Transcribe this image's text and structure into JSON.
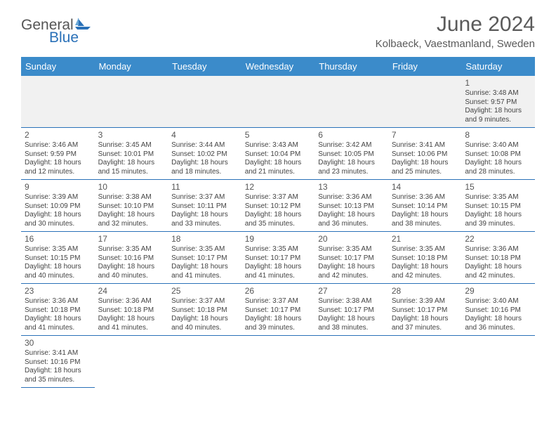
{
  "logo": {
    "part1": "General",
    "part2": "Blue"
  },
  "title": "June 2024",
  "location": "Kolbaeck, Vaestmanland, Sweden",
  "headers": [
    "Sunday",
    "Monday",
    "Tuesday",
    "Wednesday",
    "Thursday",
    "Friday",
    "Saturday"
  ],
  "colors": {
    "header_bg": "#3b8bca",
    "header_text": "#ffffff",
    "border": "#2a71b8",
    "text": "#444444"
  },
  "weeks": [
    [
      null,
      null,
      null,
      null,
      null,
      null,
      {
        "n": "1",
        "sr": "3:48 AM",
        "ss": "9:57 PM",
        "dl": "18 hours and 9 minutes."
      }
    ],
    [
      {
        "n": "2",
        "sr": "3:46 AM",
        "ss": "9:59 PM",
        "dl": "18 hours and 12 minutes."
      },
      {
        "n": "3",
        "sr": "3:45 AM",
        "ss": "10:01 PM",
        "dl": "18 hours and 15 minutes."
      },
      {
        "n": "4",
        "sr": "3:44 AM",
        "ss": "10:02 PM",
        "dl": "18 hours and 18 minutes."
      },
      {
        "n": "5",
        "sr": "3:43 AM",
        "ss": "10:04 PM",
        "dl": "18 hours and 21 minutes."
      },
      {
        "n": "6",
        "sr": "3:42 AM",
        "ss": "10:05 PM",
        "dl": "18 hours and 23 minutes."
      },
      {
        "n": "7",
        "sr": "3:41 AM",
        "ss": "10:06 PM",
        "dl": "18 hours and 25 minutes."
      },
      {
        "n": "8",
        "sr": "3:40 AM",
        "ss": "10:08 PM",
        "dl": "18 hours and 28 minutes."
      }
    ],
    [
      {
        "n": "9",
        "sr": "3:39 AM",
        "ss": "10:09 PM",
        "dl": "18 hours and 30 minutes."
      },
      {
        "n": "10",
        "sr": "3:38 AM",
        "ss": "10:10 PM",
        "dl": "18 hours and 32 minutes."
      },
      {
        "n": "11",
        "sr": "3:37 AM",
        "ss": "10:11 PM",
        "dl": "18 hours and 33 minutes."
      },
      {
        "n": "12",
        "sr": "3:37 AM",
        "ss": "10:12 PM",
        "dl": "18 hours and 35 minutes."
      },
      {
        "n": "13",
        "sr": "3:36 AM",
        "ss": "10:13 PM",
        "dl": "18 hours and 36 minutes."
      },
      {
        "n": "14",
        "sr": "3:36 AM",
        "ss": "10:14 PM",
        "dl": "18 hours and 38 minutes."
      },
      {
        "n": "15",
        "sr": "3:35 AM",
        "ss": "10:15 PM",
        "dl": "18 hours and 39 minutes."
      }
    ],
    [
      {
        "n": "16",
        "sr": "3:35 AM",
        "ss": "10:15 PM",
        "dl": "18 hours and 40 minutes."
      },
      {
        "n": "17",
        "sr": "3:35 AM",
        "ss": "10:16 PM",
        "dl": "18 hours and 40 minutes."
      },
      {
        "n": "18",
        "sr": "3:35 AM",
        "ss": "10:17 PM",
        "dl": "18 hours and 41 minutes."
      },
      {
        "n": "19",
        "sr": "3:35 AM",
        "ss": "10:17 PM",
        "dl": "18 hours and 41 minutes."
      },
      {
        "n": "20",
        "sr": "3:35 AM",
        "ss": "10:17 PM",
        "dl": "18 hours and 42 minutes."
      },
      {
        "n": "21",
        "sr": "3:35 AM",
        "ss": "10:18 PM",
        "dl": "18 hours and 42 minutes."
      },
      {
        "n": "22",
        "sr": "3:36 AM",
        "ss": "10:18 PM",
        "dl": "18 hours and 42 minutes."
      }
    ],
    [
      {
        "n": "23",
        "sr": "3:36 AM",
        "ss": "10:18 PM",
        "dl": "18 hours and 41 minutes."
      },
      {
        "n": "24",
        "sr": "3:36 AM",
        "ss": "10:18 PM",
        "dl": "18 hours and 41 minutes."
      },
      {
        "n": "25",
        "sr": "3:37 AM",
        "ss": "10:18 PM",
        "dl": "18 hours and 40 minutes."
      },
      {
        "n": "26",
        "sr": "3:37 AM",
        "ss": "10:17 PM",
        "dl": "18 hours and 39 minutes."
      },
      {
        "n": "27",
        "sr": "3:38 AM",
        "ss": "10:17 PM",
        "dl": "18 hours and 38 minutes."
      },
      {
        "n": "28",
        "sr": "3:39 AM",
        "ss": "10:17 PM",
        "dl": "18 hours and 37 minutes."
      },
      {
        "n": "29",
        "sr": "3:40 AM",
        "ss": "10:16 PM",
        "dl": "18 hours and 36 minutes."
      }
    ],
    [
      {
        "n": "30",
        "sr": "3:41 AM",
        "ss": "10:16 PM",
        "dl": "18 hours and 35 minutes."
      },
      null,
      null,
      null,
      null,
      null,
      null
    ]
  ]
}
